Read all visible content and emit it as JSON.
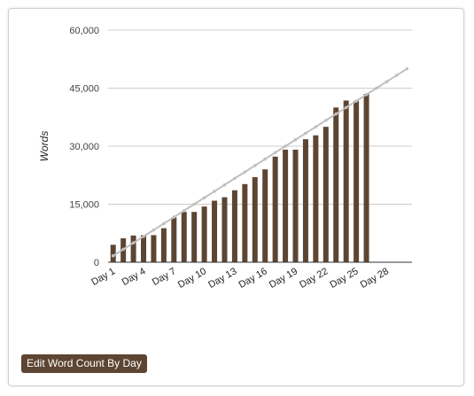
{
  "colors": {
    "bar": "#5d4533",
    "target_line": "#c0c0c0",
    "button_bg": "#5d4533",
    "grid": "#cccccc",
    "axis": "#333333"
  },
  "edit_button": {
    "label": "Edit Word Count By Day"
  },
  "chart_data": {
    "type": "bar",
    "ylabel": "Words",
    "xlabel": "",
    "ylim": [
      0,
      60000
    ],
    "yticks": [
      0,
      15000,
      30000,
      45000,
      60000
    ],
    "ytick_labels": [
      "0",
      "15,000",
      "30,000",
      "45,000",
      "60,000"
    ],
    "xtick_labels": [
      "Day 1",
      "Day 4",
      "Day 7",
      "Day 10",
      "Day 13",
      "Day 16",
      "Day 19",
      "Day 22",
      "Day 25",
      "Day 28"
    ],
    "xtick_days": [
      1,
      4,
      7,
      10,
      13,
      16,
      19,
      22,
      25,
      28
    ],
    "num_days": 30,
    "grid": true,
    "legend": "none",
    "bars": {
      "days": [
        1,
        2,
        3,
        4,
        5,
        6,
        7,
        8,
        9,
        10,
        11,
        12,
        13,
        14,
        15,
        16,
        17,
        18,
        19,
        20,
        21,
        22,
        23,
        24,
        25,
        26
      ],
      "values": [
        4500,
        6200,
        6900,
        7000,
        7000,
        8800,
        11600,
        13000,
        13000,
        14400,
        15900,
        16800,
        18600,
        20200,
        22000,
        24000,
        27300,
        29100,
        29100,
        31800,
        32800,
        35000,
        40000,
        41800,
        41700,
        43500
      ]
    },
    "target_line": {
      "days": [
        1,
        2,
        3,
        4,
        5,
        6,
        7,
        8,
        9,
        10,
        11,
        12,
        13,
        14,
        15,
        16,
        17,
        18,
        19,
        20,
        21,
        22,
        23,
        24,
        25,
        26,
        27,
        28,
        29,
        30
      ],
      "values": [
        1667,
        3333,
        5000,
        6667,
        8333,
        10000,
        11667,
        13333,
        15000,
        16667,
        18333,
        20000,
        21667,
        23333,
        25000,
        26667,
        28333,
        30000,
        31667,
        33333,
        35000,
        36667,
        38333,
        40000,
        41667,
        43333,
        45000,
        46667,
        48333,
        50000
      ]
    }
  }
}
